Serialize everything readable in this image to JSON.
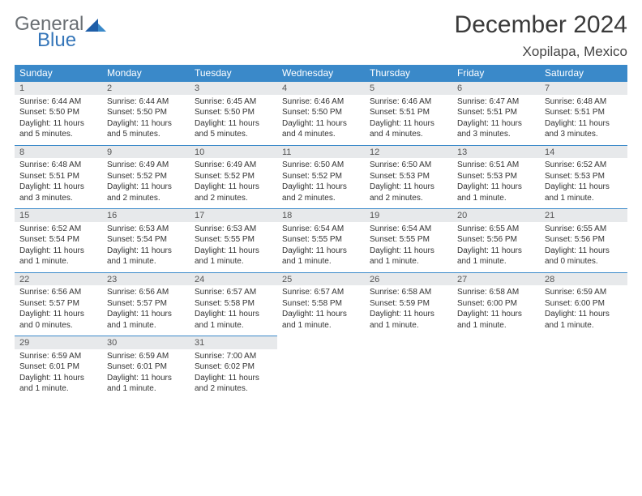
{
  "logo": {
    "textGeneral": "General",
    "textBlue": "Blue"
  },
  "title": "December 2024",
  "location": "Xopilapa, Mexico",
  "colors": {
    "headerBar": "#3a89c9",
    "dayBg": "#e7e9eb",
    "ruleLine": "#3a89c9",
    "logoGray": "#6a6f73",
    "logoBlue": "#3576b9"
  },
  "dayNames": [
    "Sunday",
    "Monday",
    "Tuesday",
    "Wednesday",
    "Thursday",
    "Friday",
    "Saturday"
  ],
  "weeks": [
    [
      {
        "n": "1",
        "sr": "Sunrise: 6:44 AM",
        "ss": "Sunset: 5:50 PM",
        "d1": "Daylight: 11 hours",
        "d2": "and 5 minutes."
      },
      {
        "n": "2",
        "sr": "Sunrise: 6:44 AM",
        "ss": "Sunset: 5:50 PM",
        "d1": "Daylight: 11 hours",
        "d2": "and 5 minutes."
      },
      {
        "n": "3",
        "sr": "Sunrise: 6:45 AM",
        "ss": "Sunset: 5:50 PM",
        "d1": "Daylight: 11 hours",
        "d2": "and 5 minutes."
      },
      {
        "n": "4",
        "sr": "Sunrise: 6:46 AM",
        "ss": "Sunset: 5:50 PM",
        "d1": "Daylight: 11 hours",
        "d2": "and 4 minutes."
      },
      {
        "n": "5",
        "sr": "Sunrise: 6:46 AM",
        "ss": "Sunset: 5:51 PM",
        "d1": "Daylight: 11 hours",
        "d2": "and 4 minutes."
      },
      {
        "n": "6",
        "sr": "Sunrise: 6:47 AM",
        "ss": "Sunset: 5:51 PM",
        "d1": "Daylight: 11 hours",
        "d2": "and 3 minutes."
      },
      {
        "n": "7",
        "sr": "Sunrise: 6:48 AM",
        "ss": "Sunset: 5:51 PM",
        "d1": "Daylight: 11 hours",
        "d2": "and 3 minutes."
      }
    ],
    [
      {
        "n": "8",
        "sr": "Sunrise: 6:48 AM",
        "ss": "Sunset: 5:51 PM",
        "d1": "Daylight: 11 hours",
        "d2": "and 3 minutes."
      },
      {
        "n": "9",
        "sr": "Sunrise: 6:49 AM",
        "ss": "Sunset: 5:52 PM",
        "d1": "Daylight: 11 hours",
        "d2": "and 2 minutes."
      },
      {
        "n": "10",
        "sr": "Sunrise: 6:49 AM",
        "ss": "Sunset: 5:52 PM",
        "d1": "Daylight: 11 hours",
        "d2": "and 2 minutes."
      },
      {
        "n": "11",
        "sr": "Sunrise: 6:50 AM",
        "ss": "Sunset: 5:52 PM",
        "d1": "Daylight: 11 hours",
        "d2": "and 2 minutes."
      },
      {
        "n": "12",
        "sr": "Sunrise: 6:50 AM",
        "ss": "Sunset: 5:53 PM",
        "d1": "Daylight: 11 hours",
        "d2": "and 2 minutes."
      },
      {
        "n": "13",
        "sr": "Sunrise: 6:51 AM",
        "ss": "Sunset: 5:53 PM",
        "d1": "Daylight: 11 hours",
        "d2": "and 1 minute."
      },
      {
        "n": "14",
        "sr": "Sunrise: 6:52 AM",
        "ss": "Sunset: 5:53 PM",
        "d1": "Daylight: 11 hours",
        "d2": "and 1 minute."
      }
    ],
    [
      {
        "n": "15",
        "sr": "Sunrise: 6:52 AM",
        "ss": "Sunset: 5:54 PM",
        "d1": "Daylight: 11 hours",
        "d2": "and 1 minute."
      },
      {
        "n": "16",
        "sr": "Sunrise: 6:53 AM",
        "ss": "Sunset: 5:54 PM",
        "d1": "Daylight: 11 hours",
        "d2": "and 1 minute."
      },
      {
        "n": "17",
        "sr": "Sunrise: 6:53 AM",
        "ss": "Sunset: 5:55 PM",
        "d1": "Daylight: 11 hours",
        "d2": "and 1 minute."
      },
      {
        "n": "18",
        "sr": "Sunrise: 6:54 AM",
        "ss": "Sunset: 5:55 PM",
        "d1": "Daylight: 11 hours",
        "d2": "and 1 minute."
      },
      {
        "n": "19",
        "sr": "Sunrise: 6:54 AM",
        "ss": "Sunset: 5:55 PM",
        "d1": "Daylight: 11 hours",
        "d2": "and 1 minute."
      },
      {
        "n": "20",
        "sr": "Sunrise: 6:55 AM",
        "ss": "Sunset: 5:56 PM",
        "d1": "Daylight: 11 hours",
        "d2": "and 1 minute."
      },
      {
        "n": "21",
        "sr": "Sunrise: 6:55 AM",
        "ss": "Sunset: 5:56 PM",
        "d1": "Daylight: 11 hours",
        "d2": "and 0 minutes."
      }
    ],
    [
      {
        "n": "22",
        "sr": "Sunrise: 6:56 AM",
        "ss": "Sunset: 5:57 PM",
        "d1": "Daylight: 11 hours",
        "d2": "and 0 minutes."
      },
      {
        "n": "23",
        "sr": "Sunrise: 6:56 AM",
        "ss": "Sunset: 5:57 PM",
        "d1": "Daylight: 11 hours",
        "d2": "and 1 minute."
      },
      {
        "n": "24",
        "sr": "Sunrise: 6:57 AM",
        "ss": "Sunset: 5:58 PM",
        "d1": "Daylight: 11 hours",
        "d2": "and 1 minute."
      },
      {
        "n": "25",
        "sr": "Sunrise: 6:57 AM",
        "ss": "Sunset: 5:58 PM",
        "d1": "Daylight: 11 hours",
        "d2": "and 1 minute."
      },
      {
        "n": "26",
        "sr": "Sunrise: 6:58 AM",
        "ss": "Sunset: 5:59 PM",
        "d1": "Daylight: 11 hours",
        "d2": "and 1 minute."
      },
      {
        "n": "27",
        "sr": "Sunrise: 6:58 AM",
        "ss": "Sunset: 6:00 PM",
        "d1": "Daylight: 11 hours",
        "d2": "and 1 minute."
      },
      {
        "n": "28",
        "sr": "Sunrise: 6:59 AM",
        "ss": "Sunset: 6:00 PM",
        "d1": "Daylight: 11 hours",
        "d2": "and 1 minute."
      }
    ],
    [
      {
        "n": "29",
        "sr": "Sunrise: 6:59 AM",
        "ss": "Sunset: 6:01 PM",
        "d1": "Daylight: 11 hours",
        "d2": "and 1 minute."
      },
      {
        "n": "30",
        "sr": "Sunrise: 6:59 AM",
        "ss": "Sunset: 6:01 PM",
        "d1": "Daylight: 11 hours",
        "d2": "and 1 minute."
      },
      {
        "n": "31",
        "sr": "Sunrise: 7:00 AM",
        "ss": "Sunset: 6:02 PM",
        "d1": "Daylight: 11 hours",
        "d2": "and 2 minutes."
      },
      null,
      null,
      null,
      null
    ]
  ]
}
